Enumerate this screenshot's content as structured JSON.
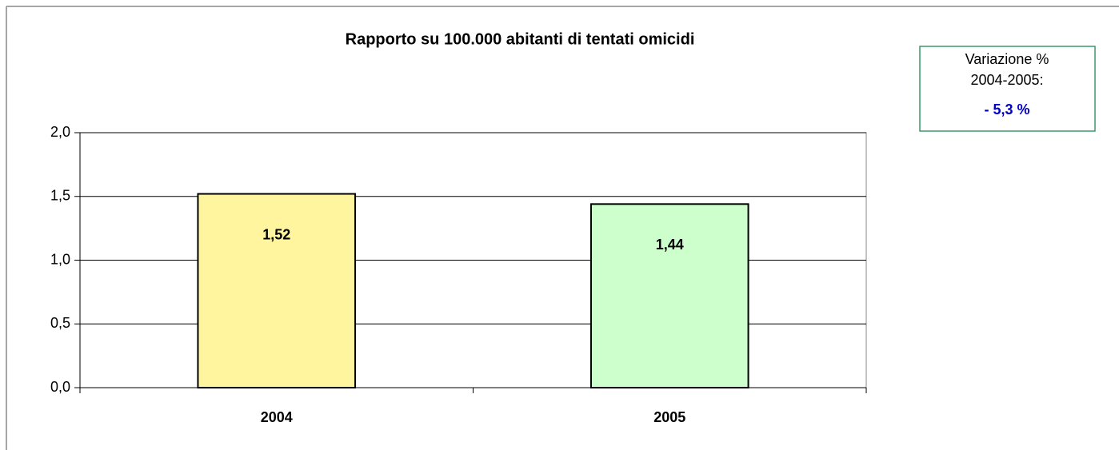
{
  "chart_data": {
    "type": "bar",
    "title": "Rapporto su 100.000 abitanti di tentati omicidi",
    "categories": [
      "2004",
      "2005"
    ],
    "values": [
      1.52,
      1.44
    ],
    "value_labels": [
      "1,52",
      "1,44"
    ],
    "colors": [
      "#fff59e",
      "#ccffcc"
    ],
    "ylim": [
      0,
      2
    ],
    "yticks": [
      {
        "value": 0,
        "label": "0,0"
      },
      {
        "value": 0.5,
        "label": "0,5"
      },
      {
        "value": 1,
        "label": "1,0"
      },
      {
        "value": 1.5,
        "label": "1,5"
      },
      {
        "value": 2,
        "label": "2,0"
      }
    ],
    "grid": true,
    "annotation": [
      "Variazione %",
      "2004-2005:",
      "- 5,3 %"
    ]
  }
}
